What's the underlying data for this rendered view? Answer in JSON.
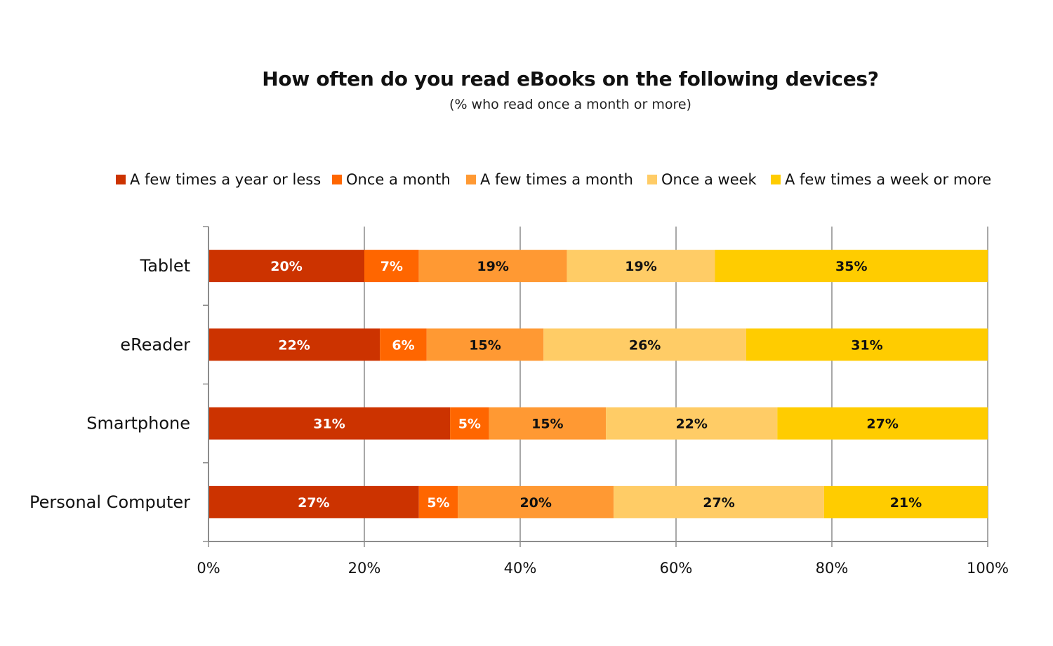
{
  "chart_data": {
    "type": "bar",
    "orientation": "horizontal",
    "stacked": true,
    "title": "How often do you read eBooks on the following devices?",
    "subtitle": "(% who read once a month or more)",
    "categories": [
      "Tablet",
      "eReader",
      "Smartphone",
      "Personal Computer"
    ],
    "series": [
      {
        "name": "A few times a year or less",
        "color": "#cc3300",
        "label_color": "#ffffff",
        "values": [
          20,
          22,
          31,
          27
        ],
        "labels": [
          "20%",
          "22%",
          "31%",
          "27%"
        ]
      },
      {
        "name": "Once a month",
        "color": "#ff6600",
        "label_color": "#ffffff",
        "values": [
          7,
          6,
          5,
          5
        ],
        "labels": [
          "7%",
          "6%",
          "5%",
          "5%"
        ]
      },
      {
        "name": "A few times a month",
        "color": "#ff9933",
        "label_color": "#111111",
        "values": [
          19,
          15,
          15,
          20
        ],
        "labels": [
          "19%",
          "15%",
          "15%",
          "20%"
        ]
      },
      {
        "name": "Once a week",
        "color": "#ffcc66",
        "label_color": "#111111",
        "values": [
          19,
          26,
          22,
          27
        ],
        "labels": [
          "19%",
          "26%",
          "22%",
          "27%"
        ]
      },
      {
        "name": "A few times a week or more",
        "color": "#ffcc00",
        "label_color": "#111111",
        "values": [
          35,
          31,
          27,
          21
        ],
        "labels": [
          "35%",
          "31%",
          "27%",
          "21%"
        ]
      }
    ],
    "xlim": [
      0,
      100
    ],
    "xticks": [
      "0%",
      "20%",
      "40%",
      "60%",
      "80%",
      "100%"
    ],
    "grid": true,
    "legend_position": "top"
  }
}
